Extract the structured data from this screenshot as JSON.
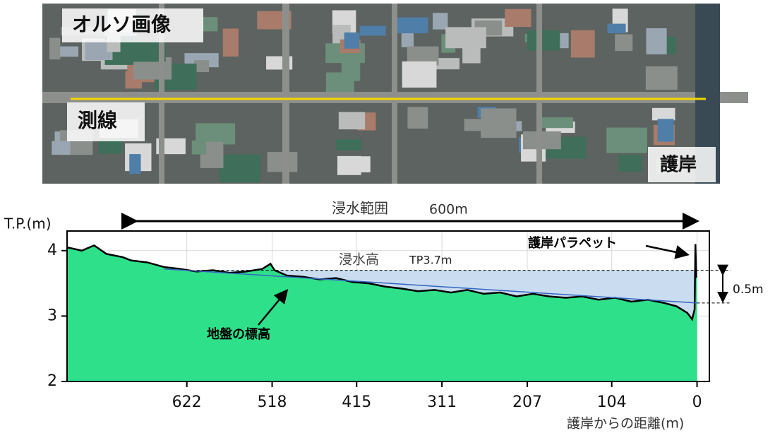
{
  "photo": {
    "title": "オルソ画像",
    "line_label": "測線",
    "seawall_label": "護岸"
  },
  "chart_data": {
    "type": "area",
    "y_label": "T.P.(m)",
    "x_label": "護岸からの距離(m)",
    "flood_range_label": "浸水範囲",
    "flood_range_value": "600m",
    "flood_height_label": "浸水高",
    "flood_height_value": "TP3.7m",
    "parapet_label": "護岸パラペット",
    "ground_label": "地盤の標高",
    "difference_label": "0.5m",
    "flood_level": 3.7,
    "xlim": [
      768,
      -15
    ],
    "xticks": [
      622,
      518,
      415,
      311,
      207,
      104,
      0
    ],
    "ylim": [
      2,
      4.3
    ],
    "yticks": [
      2,
      3,
      4
    ],
    "grid": true,
    "series": [
      {
        "color": "#2fe08a",
        "x": [
          768,
          750,
          735,
          720,
          700,
          690,
          670,
          650,
          630,
          610,
          590,
          570,
          550,
          530,
          520,
          515,
          500,
          480,
          460,
          440,
          420,
          400,
          380,
          360,
          340,
          320,
          300,
          280,
          260,
          240,
          220,
          200,
          180,
          160,
          140,
          120,
          100,
          80,
          60,
          40,
          25,
          12,
          6,
          3,
          2,
          1,
          0
        ],
        "values": [
          4.05,
          4.0,
          4.08,
          3.95,
          3.9,
          3.85,
          3.82,
          3.75,
          3.72,
          3.68,
          3.7,
          3.66,
          3.68,
          3.72,
          3.8,
          3.7,
          3.62,
          3.6,
          3.56,
          3.58,
          3.52,
          3.5,
          3.45,
          3.42,
          3.38,
          3.4,
          3.36,
          3.4,
          3.34,
          3.36,
          3.3,
          3.34,
          3.3,
          3.28,
          3.3,
          3.25,
          3.28,
          3.22,
          3.25,
          3.2,
          3.15,
          3.05,
          2.95,
          3.1,
          4.1,
          3.6,
          3.6
        ]
      },
      {
        "color": "#3366c0",
        "x": [
          650,
          0
        ],
        "values": [
          3.72,
          3.2
        ]
      }
    ]
  }
}
